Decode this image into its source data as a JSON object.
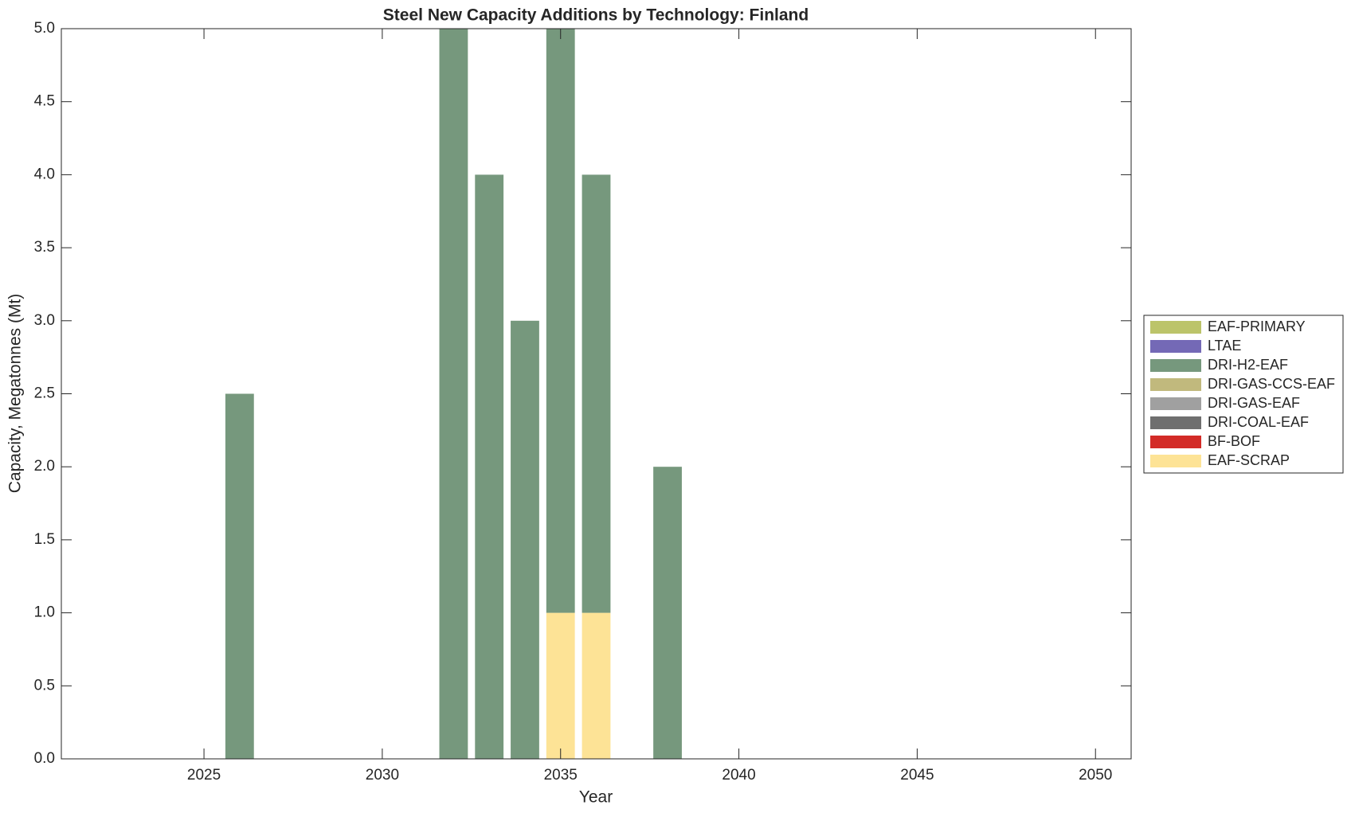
{
  "chart_data": {
    "type": "stacked_bar",
    "title": "Steel New Capacity Additions by Technology: Finland",
    "x_label": "Year",
    "y_label": "Capacity, Megatonnes (Mt)",
    "x": [
      2026,
      2032,
      2033,
      2034,
      2035,
      2036,
      2038
    ],
    "series": [
      {
        "name": "EAF-PRIMARY",
        "color": "#bcc46a",
        "values": [
          0,
          0,
          0,
          0,
          0,
          0,
          0
        ]
      },
      {
        "name": "LTAE",
        "color": "#7469b6",
        "values": [
          0,
          0,
          0,
          0,
          0,
          0,
          0
        ]
      },
      {
        "name": "DRI-H2-EAF",
        "color": "#76987d",
        "values": [
          2.5,
          5,
          4,
          3,
          4,
          3,
          2
        ]
      },
      {
        "name": "DRI-GAS-CCS-EAF",
        "color": "#c1b97d",
        "values": [
          0,
          0,
          0,
          0,
          0,
          0,
          0
        ]
      },
      {
        "name": "DRI-GAS-EAF",
        "color": "#a0a0a0",
        "values": [
          0,
          0,
          0,
          0,
          0,
          0,
          0
        ]
      },
      {
        "name": "DRI-COAL-EAF",
        "color": "#6f6f6f",
        "values": [
          0,
          0,
          0,
          0,
          0,
          0,
          0
        ]
      },
      {
        "name": "BF-BOF",
        "color": "#d32b27",
        "values": [
          0,
          0,
          0,
          0,
          0,
          0,
          0
        ]
      },
      {
        "name": "EAF-SCRAP",
        "color": "#fde396",
        "values": [
          0,
          0,
          0,
          0,
          1,
          1,
          0
        ]
      }
    ],
    "xlim": [
      2021,
      2051
    ],
    "xticks": [
      2025,
      2030,
      2035,
      2040,
      2045,
      2050
    ],
    "ylim": [
      0,
      5
    ],
    "yticks": [
      {
        "value": 0,
        "label": "0.0"
      },
      {
        "value": 0.5,
        "label": "0.5"
      },
      {
        "value": 1,
        "label": "1.0"
      },
      {
        "value": 1.5,
        "label": "1.5"
      },
      {
        "value": 2,
        "label": "2.0"
      },
      {
        "value": 2.5,
        "label": "2.5"
      },
      {
        "value": 3,
        "label": "3.0"
      },
      {
        "value": 3.5,
        "label": "3.5"
      },
      {
        "value": 4,
        "label": "4.0"
      },
      {
        "value": 4.5,
        "label": "4.5"
      },
      {
        "value": 5,
        "label": "5.0"
      }
    ],
    "legend": "right",
    "grid": false
  }
}
